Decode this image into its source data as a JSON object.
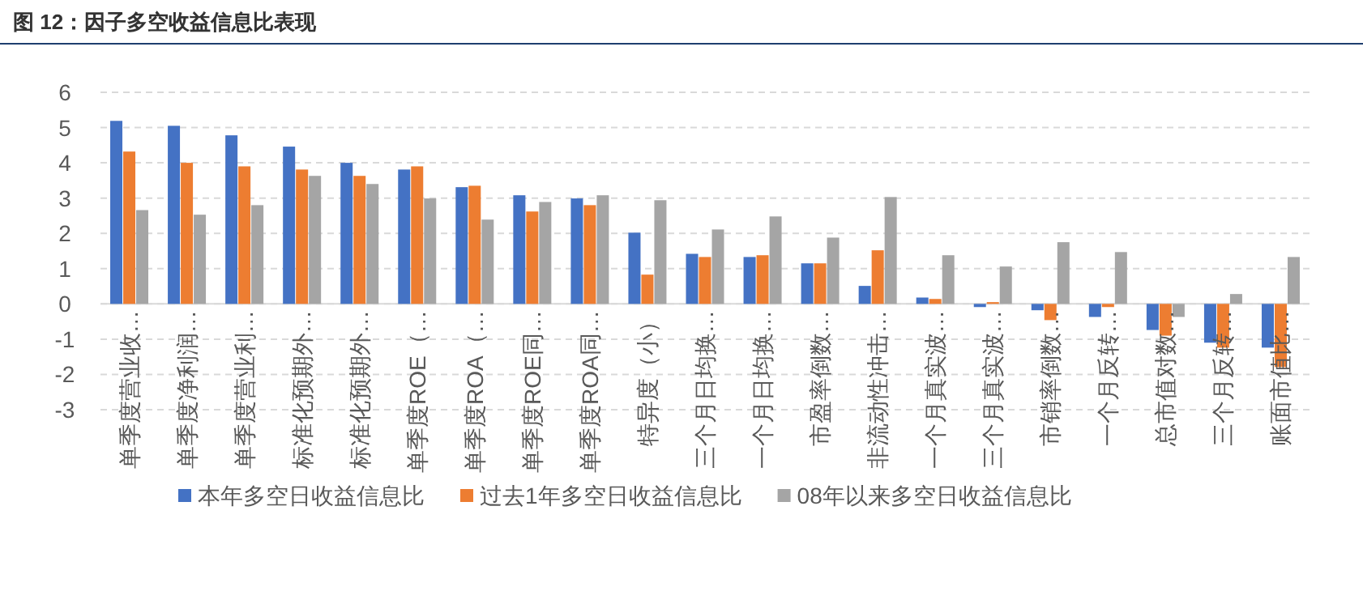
{
  "chart_data": {
    "type": "bar",
    "title": "图 12：因子多空收益信息比表现",
    "categories": [
      "单季度营业收…",
      "单季度净利润…",
      "单季度营业利…",
      "标准化预期外…",
      "标准化预期外…",
      "单季度ROE（…",
      "单季度ROA（…",
      "单季度ROE同…",
      "单季度ROA同…",
      "特异度（小）",
      "三个月日均换…",
      "一个月日均换…",
      "市盈率倒数…",
      "非流动性冲击…",
      "一个月真实波…",
      "三个月真实波…",
      "市销率倒数…",
      "一个月反转…",
      "总市值对数…",
      "三个月反转…",
      "账面市值比…"
    ],
    "series": [
      {
        "name": "本年多空日收益信息比",
        "color": "#4472c4",
        "values": [
          5.19,
          5.05,
          4.78,
          4.46,
          4.0,
          3.81,
          3.31,
          3.08,
          2.99,
          2.02,
          1.42,
          1.33,
          1.15,
          0.51,
          0.18,
          -0.09,
          -0.18,
          -0.37,
          -0.74,
          -1.1,
          -1.24
        ]
      },
      {
        "name": "过去1年多空日收益信息比",
        "color": "#ed7d31",
        "values": [
          4.32,
          4.0,
          3.9,
          3.81,
          3.63,
          3.9,
          3.35,
          2.62,
          2.8,
          0.83,
          1.33,
          1.38,
          1.15,
          1.52,
          0.14,
          0.05,
          -0.46,
          -0.09,
          -0.9,
          -1.24,
          -1.79
        ]
      },
      {
        "name": "08年以来多空日收益信息比",
        "color": "#a5a5a5",
        "values": [
          2.66,
          2.53,
          2.8,
          3.63,
          3.4,
          2.99,
          2.39,
          2.89,
          3.08,
          2.94,
          2.11,
          2.48,
          1.88,
          3.03,
          1.38,
          1.06,
          1.75,
          1.47,
          -0.37,
          0.28,
          1.33
        ]
      }
    ],
    "ylim": [
      -3,
      6
    ],
    "yticks": [
      -3,
      -2,
      -1,
      0,
      1,
      2,
      3,
      4,
      5,
      6
    ],
    "grid": "y",
    "legend": "bottom"
  }
}
